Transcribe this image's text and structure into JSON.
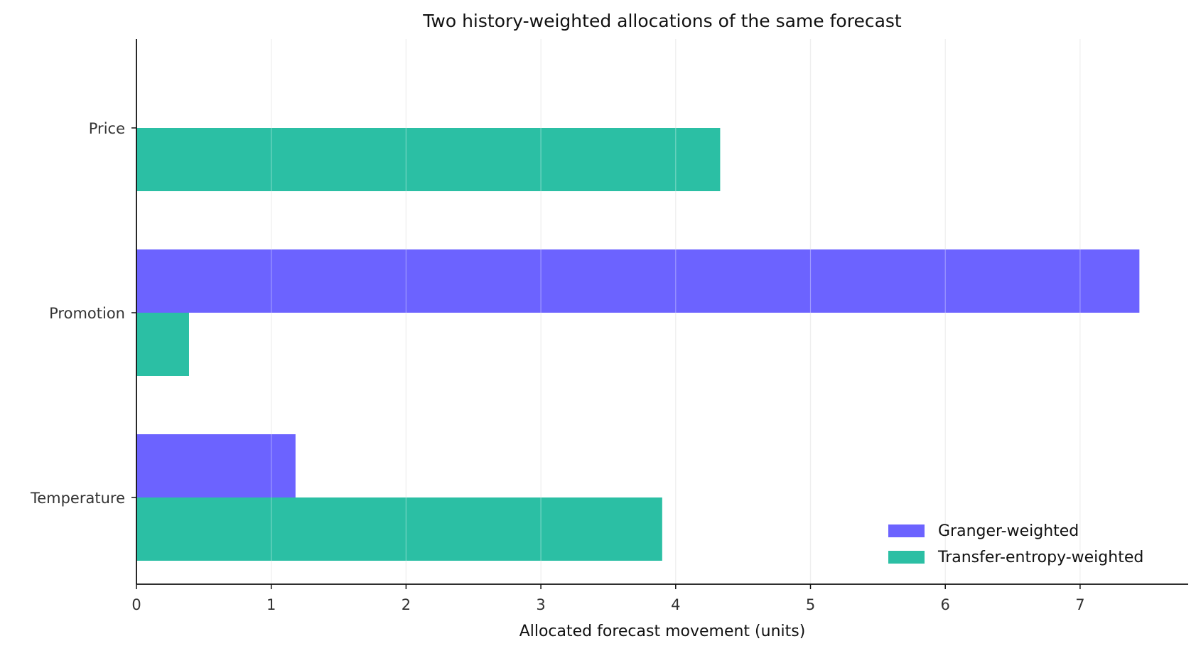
{
  "chart_data": {
    "type": "bar",
    "orientation": "horizontal",
    "title": "Two history-weighted allocations of the same forecast",
    "xlabel": "Allocated forecast movement (units)",
    "ylabel": "",
    "categories": [
      "Price",
      "Promotion",
      "Temperature"
    ],
    "series": [
      {
        "name": "Granger-weighted",
        "color": "#6c63ff",
        "values": [
          0.0,
          7.44,
          1.18
        ]
      },
      {
        "name": "Transfer-entropy-weighted",
        "color": "#2bbfa4",
        "values": [
          4.33,
          0.39,
          3.9
        ]
      }
    ],
    "xlim": [
      0,
      7.8
    ],
    "xticks": [
      0,
      1,
      2,
      3,
      4,
      5,
      6,
      7
    ],
    "grid": "x",
    "legend": "bottom-right"
  }
}
